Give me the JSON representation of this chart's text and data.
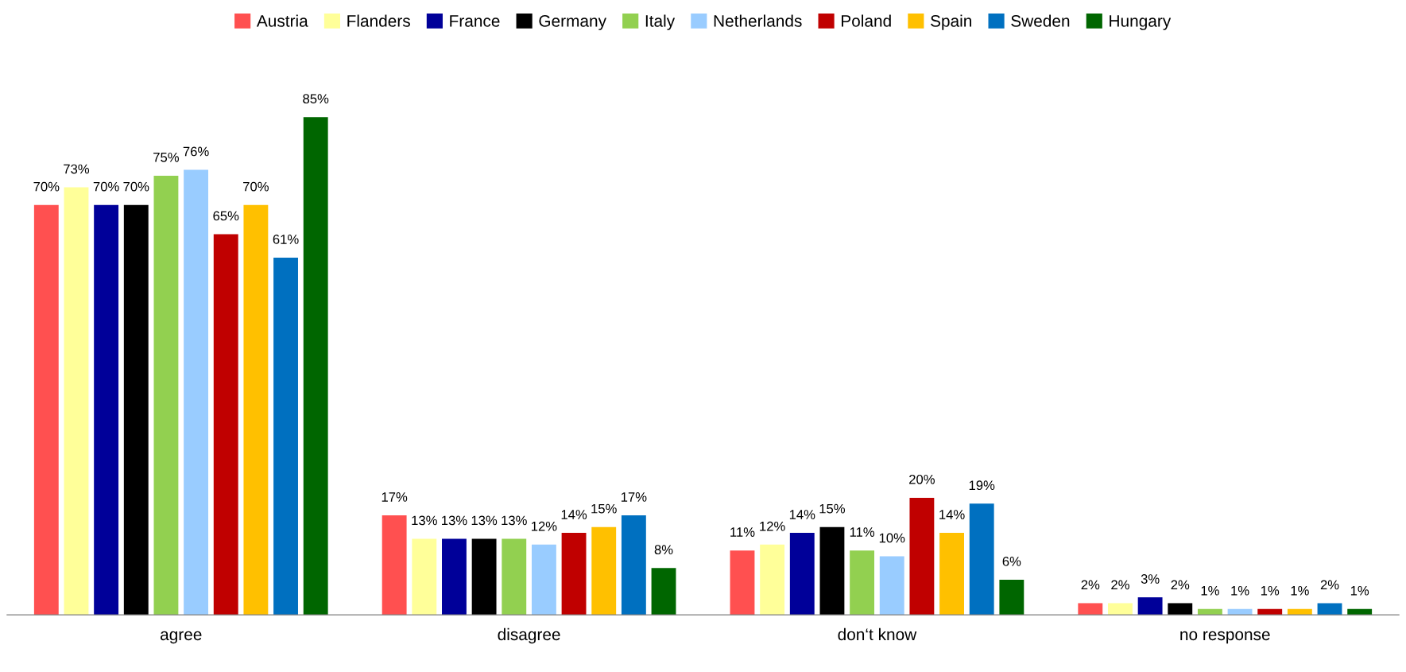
{
  "chart_data": {
    "type": "bar",
    "categories": [
      "agree",
      "disagree",
      "don‘t know",
      "no response"
    ],
    "series": [
      {
        "name": "Austria",
        "color": "#ff5050",
        "values": [
          70,
          17,
          11,
          2
        ],
        "value_labels": [
          "70%",
          "17%",
          "11%",
          "2%"
        ]
      },
      {
        "name": "Flanders",
        "color": "#ffff99",
        "values": [
          73,
          13,
          12,
          2
        ],
        "value_labels": [
          "73%",
          "13%",
          "12%",
          "2%"
        ]
      },
      {
        "name": "France",
        "color": "#000099",
        "values": [
          70,
          13,
          14,
          3
        ],
        "value_labels": [
          "70%",
          "13%",
          "14%",
          "3%"
        ]
      },
      {
        "name": "Germany",
        "color": "#000000",
        "values": [
          70,
          13,
          15,
          2
        ],
        "value_labels": [
          "70%",
          "13%",
          "15%",
          "2%"
        ]
      },
      {
        "name": "Italy",
        "color": "#92d050",
        "values": [
          75,
          13,
          11,
          1
        ],
        "value_labels": [
          "75%",
          "13%",
          "11%",
          "1%"
        ]
      },
      {
        "name": "Netherlands",
        "color": "#99ccff",
        "values": [
          76,
          12,
          10,
          1
        ],
        "value_labels": [
          "76%",
          "12%",
          "10%",
          "1%"
        ]
      },
      {
        "name": "Poland",
        "color": "#c00000",
        "values": [
          65,
          14,
          20,
          1
        ],
        "value_labels": [
          "65%",
          "14%",
          "20%",
          "1%"
        ]
      },
      {
        "name": "Spain",
        "color": "#ffc000",
        "values": [
          70,
          15,
          14,
          1
        ],
        "value_labels": [
          "70%",
          "15%",
          "14%",
          "1%"
        ]
      },
      {
        "name": "Sweden",
        "color": "#0070c0",
        "values": [
          61,
          17,
          19,
          2
        ],
        "value_labels": [
          "61%",
          "17%",
          "19%",
          "2%"
        ]
      },
      {
        "name": "Hungary",
        "color": "#006600",
        "values": [
          85,
          8,
          6,
          1
        ],
        "value_labels": [
          "85%",
          "8%",
          "6%",
          "1%"
        ]
      }
    ],
    "legend": "top",
    "grid": false
  }
}
